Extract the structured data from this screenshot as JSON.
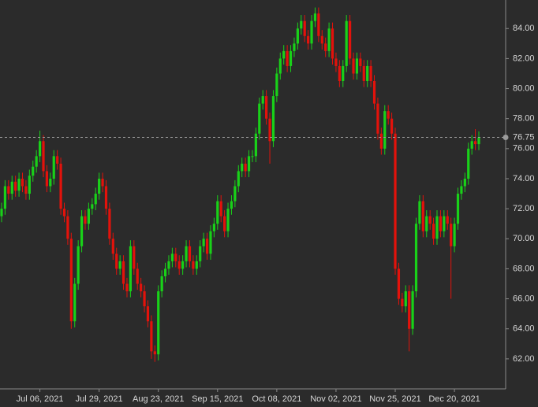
{
  "chart_data": {
    "type": "candlestick",
    "x": [
      "2021-06-21",
      "2021-06-22",
      "2021-06-23",
      "2021-06-24",
      "2021-06-25",
      "2021-06-28",
      "2021-06-29",
      "2021-06-30",
      "2021-07-01",
      "2021-07-02",
      "2021-07-05",
      "2021-07-06",
      "2021-07-07",
      "2021-07-08",
      "2021-07-09",
      "2021-07-12",
      "2021-07-13",
      "2021-07-14",
      "2021-07-15",
      "2021-07-16",
      "2021-07-19",
      "2021-07-20",
      "2021-07-21",
      "2021-07-22",
      "2021-07-23",
      "2021-07-26",
      "2021-07-27",
      "2021-07-28",
      "2021-07-29",
      "2021-07-30",
      "2021-08-02",
      "2021-08-03",
      "2021-08-04",
      "2021-08-05",
      "2021-08-06",
      "2021-08-09",
      "2021-08-10",
      "2021-08-11",
      "2021-08-12",
      "2021-08-13",
      "2021-08-16",
      "2021-08-17",
      "2021-08-18",
      "2021-08-19",
      "2021-08-20",
      "2021-08-23",
      "2021-08-24",
      "2021-08-25",
      "2021-08-26",
      "2021-08-27",
      "2021-08-30",
      "2021-08-31",
      "2021-09-01",
      "2021-09-02",
      "2021-09-03",
      "2021-09-06",
      "2021-09-07",
      "2021-09-08",
      "2021-09-09",
      "2021-09-10",
      "2021-09-13",
      "2021-09-14",
      "2021-09-15",
      "2021-09-16",
      "2021-09-17",
      "2021-09-20",
      "2021-09-21",
      "2021-09-22",
      "2021-09-23",
      "2021-09-24",
      "2021-09-27",
      "2021-09-28",
      "2021-09-29",
      "2021-09-30",
      "2021-10-01",
      "2021-10-04",
      "2021-10-05",
      "2021-10-06",
      "2021-10-07",
      "2021-10-08",
      "2021-10-11",
      "2021-10-12",
      "2021-10-13",
      "2021-10-14",
      "2021-10-15",
      "2021-10-18",
      "2021-10-19",
      "2021-10-20",
      "2021-10-21",
      "2021-10-22",
      "2021-10-25",
      "2021-10-26",
      "2021-10-27",
      "2021-10-28",
      "2021-10-29",
      "2021-11-01",
      "2021-11-02",
      "2021-11-03",
      "2021-11-04",
      "2021-11-05",
      "2021-11-08",
      "2021-11-09",
      "2021-11-10",
      "2021-11-11",
      "2021-11-12",
      "2021-11-15",
      "2021-11-16",
      "2021-11-17",
      "2021-11-18",
      "2021-11-19",
      "2021-11-22",
      "2021-11-23",
      "2021-11-24",
      "2021-11-25",
      "2021-11-26",
      "2021-11-29",
      "2021-11-30",
      "2021-12-01",
      "2021-12-02",
      "2021-12-03",
      "2021-12-06",
      "2021-12-07",
      "2021-12-08",
      "2021-12-09",
      "2021-12-10",
      "2021-12-13",
      "2021-12-14",
      "2021-12-15",
      "2021-12-16",
      "2021-12-17",
      "2021-12-20",
      "2021-12-21",
      "2021-12-22",
      "2021-12-23",
      "2021-12-24",
      "2021-12-27",
      "2021-12-28",
      "2021-12-29"
    ],
    "series": [
      {
        "up_color": "#19d119",
        "down_color": "#e3120b",
        "open": [
          71.5,
          72.0,
          73.5,
          73.0,
          73.8,
          73.2,
          74.0,
          73.5,
          73.0,
          74.2,
          74.8,
          75.5,
          76.5,
          74.5,
          73.5,
          74.0,
          75.5,
          75.0,
          72.0,
          71.5,
          70.0,
          64.5,
          67.0,
          69.5,
          71.5,
          71.0,
          72.0,
          72.3,
          73.0,
          74.0,
          73.5,
          72.0,
          70.0,
          69.0,
          68.0,
          68.5,
          67.0,
          66.5,
          69.5,
          68.0,
          67.0,
          66.5,
          65.5,
          64.5,
          62.5,
          62.3,
          66.5,
          67.5,
          68.0,
          68.5,
          69.0,
          68.5,
          68.0,
          68.5,
          69.5,
          68.5,
          68.0,
          68.5,
          69.5,
          70.0,
          69.0,
          70.5,
          71.0,
          72.5,
          71.5,
          70.5,
          72.0,
          72.5,
          73.5,
          74.5,
          75.0,
          74.5,
          75.5,
          75.5,
          77.0,
          79.0,
          79.5,
          78.0,
          76.5,
          79.5,
          81.0,
          82.0,
          82.5,
          81.5,
          82.5,
          83.0,
          84.0,
          84.5,
          83.5,
          83.0,
          84.5,
          85.0,
          83.5,
          83.0,
          82.5,
          84.0,
          82.0,
          81.5,
          80.5,
          81.5,
          84.5,
          82.0,
          81.0,
          82.0,
          81.5,
          80.5,
          81.5,
          80.5,
          79.0,
          77.0,
          76.0,
          78.5,
          78.0,
          77.0,
          68.0,
          66.0,
          65.5,
          66.5,
          64.0,
          66.5,
          71.0,
          72.5,
          70.5,
          71.5,
          71.0,
          70.0,
          71.5,
          70.5,
          71.5,
          71.0,
          69.5,
          71.0,
          73.0,
          73.5,
          74.0,
          76.0,
          76.5,
          76.3
        ],
        "high": [
          72.4,
          73.9,
          73.9,
          74.2,
          74.2,
          74.4,
          74.4,
          73.9,
          74.6,
          75.2,
          75.9,
          77.2,
          76.9,
          74.9,
          74.4,
          75.9,
          75.9,
          75.4,
          72.4,
          71.9,
          70.4,
          67.4,
          69.9,
          71.9,
          71.9,
          72.4,
          72.7,
          73.4,
          74.4,
          74.4,
          73.9,
          72.4,
          70.4,
          69.4,
          68.9,
          68.9,
          67.4,
          69.9,
          69.9,
          68.4,
          67.4,
          66.9,
          65.9,
          64.9,
          62.9,
          66.9,
          67.9,
          68.4,
          68.9,
          69.4,
          69.4,
          68.9,
          68.9,
          69.9,
          69.9,
          68.9,
          68.9,
          69.9,
          70.4,
          70.4,
          70.9,
          71.4,
          72.9,
          72.9,
          71.9,
          72.4,
          72.9,
          73.9,
          74.9,
          75.4,
          75.4,
          75.9,
          75.9,
          77.4,
          79.4,
          79.9,
          79.9,
          78.4,
          79.9,
          81.4,
          82.4,
          82.9,
          82.9,
          82.9,
          83.4,
          84.4,
          84.9,
          84.9,
          83.9,
          84.9,
          85.4,
          85.4,
          83.9,
          83.4,
          84.4,
          84.4,
          82.4,
          81.9,
          81.9,
          84.9,
          84.9,
          82.4,
          82.4,
          82.4,
          81.9,
          81.9,
          81.9,
          80.9,
          79.4,
          77.4,
          78.9,
          78.9,
          78.4,
          77.4,
          68.4,
          66.4,
          66.9,
          66.9,
          66.9,
          71.4,
          72.9,
          72.9,
          71.9,
          71.9,
          71.4,
          71.9,
          71.9,
          71.9,
          71.9,
          71.4,
          71.4,
          73.4,
          73.9,
          74.4,
          76.4,
          76.9,
          77.3,
          77.15
        ],
        "low": [
          71.1,
          71.6,
          72.6,
          72.6,
          72.8,
          72.8,
          73.1,
          72.6,
          72.6,
          73.8,
          74.4,
          75.1,
          74.1,
          73.1,
          73.1,
          73.6,
          74.6,
          71.6,
          71.1,
          69.6,
          64.0,
          64.1,
          66.6,
          69.1,
          70.6,
          70.6,
          71.6,
          71.9,
          72.6,
          73.1,
          71.6,
          69.6,
          68.6,
          67.6,
          67.6,
          66.6,
          66.1,
          66.1,
          67.6,
          66.6,
          66.1,
          65.1,
          64.1,
          62.0,
          61.8,
          61.9,
          66.1,
          67.1,
          67.6,
          68.1,
          68.1,
          67.6,
          67.6,
          68.1,
          68.1,
          67.6,
          67.6,
          68.1,
          69.1,
          68.6,
          68.6,
          70.1,
          70.6,
          71.1,
          70.1,
          70.1,
          71.6,
          72.1,
          73.1,
          74.1,
          74.1,
          74.1,
          75.1,
          75.1,
          76.6,
          78.6,
          77.6,
          75.0,
          76.1,
          79.1,
          80.6,
          81.6,
          81.1,
          81.1,
          82.1,
          82.6,
          83.6,
          83.1,
          82.6,
          82.6,
          84.1,
          83.1,
          82.6,
          82.1,
          82.1,
          81.6,
          81.1,
          80.1,
          80.1,
          81.1,
          81.6,
          80.6,
          80.6,
          81.1,
          80.1,
          80.1,
          80.1,
          78.6,
          76.6,
          75.6,
          75.6,
          77.6,
          76.6,
          67.6,
          65.6,
          65.1,
          65.1,
          62.5,
          63.6,
          66.1,
          70.6,
          70.1,
          70.1,
          70.6,
          69.6,
          69.6,
          70.1,
          70.1,
          70.6,
          66.0,
          69.1,
          70.6,
          72.6,
          73.1,
          73.6,
          75.6,
          75.9,
          75.9
        ],
        "close": [
          72.0,
          73.5,
          73.0,
          73.8,
          73.2,
          74.0,
          73.5,
          73.0,
          74.2,
          74.8,
          75.5,
          76.5,
          74.5,
          73.5,
          74.0,
          75.5,
          75.0,
          72.0,
          71.5,
          70.0,
          64.5,
          67.0,
          69.5,
          71.5,
          71.0,
          72.0,
          72.3,
          73.0,
          74.0,
          73.5,
          72.0,
          70.0,
          69.0,
          68.0,
          68.5,
          67.0,
          66.5,
          69.5,
          68.0,
          67.0,
          66.5,
          65.5,
          64.5,
          62.5,
          62.3,
          66.5,
          67.5,
          68.0,
          68.5,
          69.0,
          68.5,
          68.0,
          68.5,
          69.5,
          68.5,
          68.0,
          68.5,
          69.5,
          70.0,
          69.0,
          70.5,
          71.0,
          72.5,
          71.5,
          70.5,
          72.0,
          72.5,
          73.5,
          74.5,
          75.0,
          74.5,
          75.5,
          75.5,
          77.0,
          79.0,
          79.5,
          78.0,
          76.5,
          79.5,
          81.0,
          82.0,
          82.5,
          81.5,
          82.5,
          83.0,
          84.0,
          84.5,
          83.5,
          83.0,
          84.5,
          85.0,
          83.5,
          83.0,
          82.5,
          84.0,
          82.0,
          81.5,
          80.5,
          81.5,
          84.5,
          82.0,
          81.0,
          82.0,
          81.5,
          80.5,
          81.5,
          80.5,
          79.0,
          77.0,
          76.0,
          78.5,
          78.0,
          77.0,
          68.0,
          66.0,
          65.5,
          66.5,
          64.0,
          66.5,
          71.0,
          72.5,
          70.5,
          71.5,
          71.0,
          70.0,
          71.5,
          70.5,
          71.5,
          71.0,
          69.5,
          71.0,
          73.0,
          73.5,
          74.0,
          76.0,
          76.5,
          76.3,
          76.75
        ]
      }
    ],
    "ylim": [
      60,
      85.9
    ],
    "yticks": [
      {
        "value": 62,
        "label": "62.00"
      },
      {
        "value": 64,
        "label": "64.00"
      },
      {
        "value": 66,
        "label": "66.00"
      },
      {
        "value": 68,
        "label": "68.00"
      },
      {
        "value": 70,
        "label": "70.00"
      },
      {
        "value": 72,
        "label": "72.00"
      },
      {
        "value": 74,
        "label": "74.00"
      },
      {
        "value": 76,
        "label": "76.00"
      },
      {
        "value": 78,
        "label": "78.00"
      },
      {
        "value": 80,
        "label": "80.00"
      },
      {
        "value": 82,
        "label": "82.00"
      },
      {
        "value": 84,
        "label": "84.00"
      }
    ],
    "xticks": [
      {
        "value": "2021-07-06",
        "label": "Jul 06, 2021"
      },
      {
        "value": "2021-07-29",
        "label": "Jul 29, 2021"
      },
      {
        "value": "2021-08-23",
        "label": "Aug 23, 2021"
      },
      {
        "value": "2021-09-15",
        "label": "Sep 15, 2021"
      },
      {
        "value": "2021-10-08",
        "label": "Oct 08, 2021"
      },
      {
        "value": "2021-11-02",
        "label": "Nov 02, 2021"
      },
      {
        "value": "2021-11-25",
        "label": "Nov 25, 2021"
      },
      {
        "value": "2021-12-20",
        "label": "Dec 20, 2021"
      }
    ],
    "last_price_line": true
  }
}
